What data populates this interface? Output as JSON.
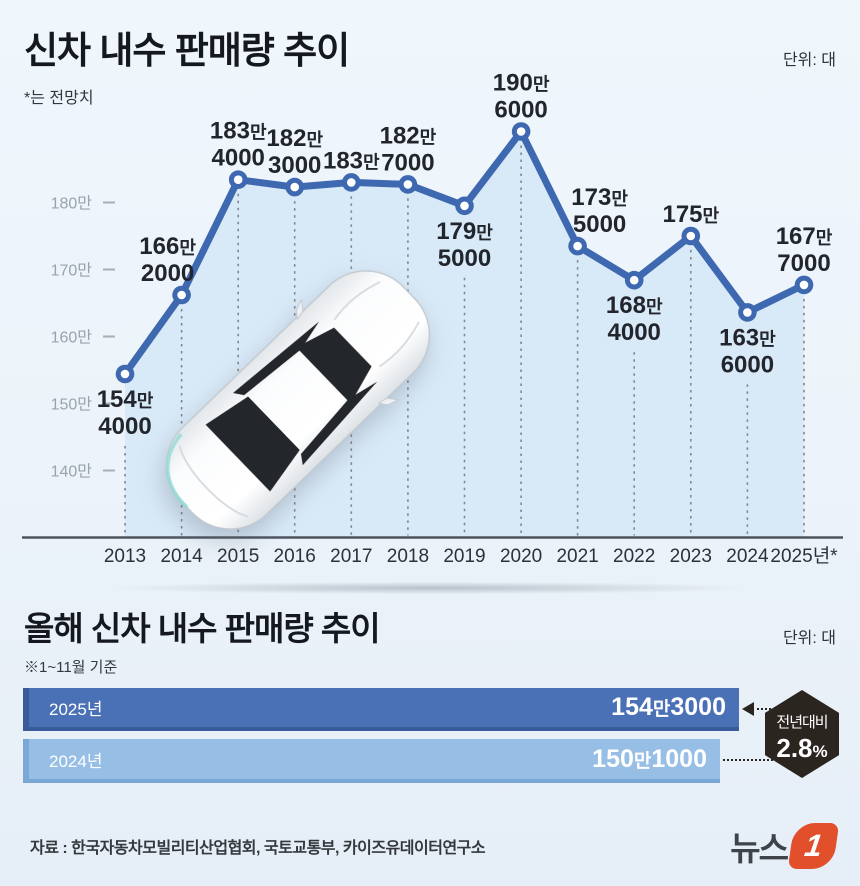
{
  "page": {
    "section1": {
      "title": "신차 내수 판매량 추이",
      "unit": "단위: 대",
      "note": "*는 전망치"
    },
    "section2": {
      "title": "올해 신차 내수 판매량 추이",
      "unit": "단위: 대",
      "note": "※1~11월 기준"
    },
    "footer": {
      "source": "자료 : 한국자동차모빌리티산업협회, 국토교통부, 카이즈유데이터연구소",
      "logo_text": "뉴스",
      "logo_mark": "1"
    }
  },
  "colors": {
    "line": "#3e68b0",
    "area": "#d8e9f7",
    "bar_2025": "#4a70b5",
    "bar_2024": "#97bee5",
    "badge": "#2b2520",
    "logo_red": "#e2502b"
  },
  "chart_data": [
    {
      "type": "line",
      "title": "신차 내수 판매량 추이",
      "unit": "대",
      "x": [
        "2013",
        "2014",
        "2015",
        "2016",
        "2017",
        "2018",
        "2019",
        "2020",
        "2021",
        "2022",
        "2023",
        "2024",
        "2025년*"
      ],
      "values": [
        1544000,
        1662000,
        1834000,
        1823000,
        1830000,
        1827000,
        1795000,
        1906000,
        1735000,
        1684000,
        1750000,
        1636000,
        1677000
      ],
      "point_labels": [
        [
          "154만",
          "4000"
        ],
        [
          "166만",
          "2000"
        ],
        [
          "183만",
          "4000"
        ],
        [
          "182만",
          "3000"
        ],
        [
          "183만"
        ],
        [
          "182만",
          "7000"
        ],
        [
          "179만",
          "5000"
        ],
        [
          "190만",
          "6000"
        ],
        [
          "173만",
          "5000"
        ],
        [
          "168만",
          "4000"
        ],
        [
          "175만"
        ],
        [
          "163만",
          "6000"
        ],
        [
          "167만",
          "7000"
        ]
      ],
      "ylabels": [
        "140만",
        "150만",
        "160만",
        "170만",
        "180만"
      ],
      "ylim": [
        1300000,
        1970000
      ],
      "note": "*는 전망치",
      "layout": {
        "grid": false,
        "marker": "open-circle",
        "line_color": "#3e68b0",
        "area_color": "#d8e9f7",
        "label_side": [
          "below",
          "above",
          "above",
          "above",
          "above",
          "above",
          "below",
          "above",
          "above",
          "below",
          "above",
          "below",
          "above"
        ],
        "label_dx": [
          0,
          -14,
          0,
          0,
          0,
          0,
          0,
          0,
          22,
          0,
          0,
          0,
          0
        ]
      }
    },
    {
      "type": "bar",
      "title": "올해 신차 내수 판매량 추이",
      "unit": "대",
      "note": "※1~11월 기준",
      "categories": [
        "2025년",
        "2024년"
      ],
      "values": [
        1543000,
        1501000
      ],
      "value_labels": [
        [
          "154",
          "만",
          "3000"
        ],
        [
          "150",
          "만",
          "1000"
        ]
      ],
      "badge": {
        "label": "전년대비",
        "value": "2.8",
        "unit": "%"
      }
    }
  ]
}
